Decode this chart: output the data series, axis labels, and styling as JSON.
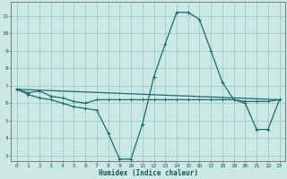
{
  "xlabel": "Humidex (Indice chaleur)",
  "bg_color": "#cce8e4",
  "grid_color": "#99cccc",
  "line_color": "#1a6b6b",
  "xlim": [
    -0.5,
    23.5
  ],
  "ylim": [
    2.7,
    11.8
  ],
  "yticks": [
    3,
    4,
    5,
    6,
    7,
    8,
    9,
    10,
    11
  ],
  "xticks": [
    0,
    1,
    2,
    3,
    4,
    5,
    6,
    7,
    8,
    9,
    10,
    11,
    12,
    13,
    14,
    15,
    16,
    17,
    18,
    19,
    20,
    21,
    22,
    23
  ],
  "series1_x": [
    0,
    1,
    2,
    3,
    4,
    5,
    6,
    7,
    8,
    9,
    10,
    11,
    12,
    13,
    14,
    15,
    16,
    17,
    18,
    19,
    20,
    21,
    22,
    23
  ],
  "series1_y": [
    6.8,
    6.6,
    6.7,
    6.4,
    6.3,
    6.1,
    6.0,
    6.2,
    6.2,
    6.2,
    6.2,
    6.2,
    6.2,
    6.2,
    6.2,
    6.2,
    6.2,
    6.2,
    6.2,
    6.2,
    6.1,
    6.1,
    6.1,
    6.2
  ],
  "series2_x": [
    0,
    1,
    2,
    3,
    4,
    5,
    6,
    7,
    8,
    9,
    10,
    11,
    12,
    13,
    14,
    15,
    16,
    17,
    18,
    19,
    20,
    21,
    22,
    23
  ],
  "series2_y": [
    6.8,
    6.5,
    6.3,
    6.2,
    6.0,
    5.8,
    5.7,
    5.6,
    4.3,
    2.8,
    2.8,
    4.8,
    7.5,
    9.4,
    11.2,
    11.2,
    10.8,
    9.0,
    7.2,
    6.2,
    6.0,
    4.5,
    4.5,
    6.2
  ],
  "series3_x": [
    0,
    23
  ],
  "series3_y": [
    6.8,
    6.2
  ],
  "marker_size": 2.5,
  "line_width": 0.9
}
